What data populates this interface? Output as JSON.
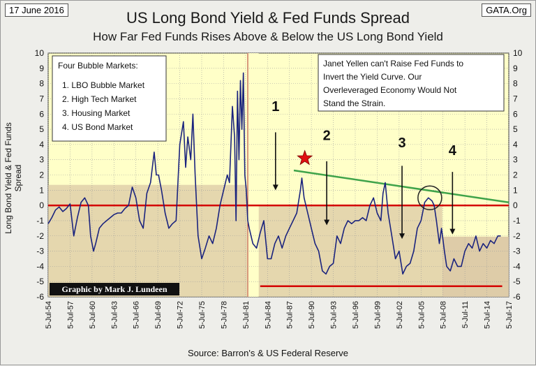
{
  "header": {
    "date": "17 June 2016",
    "source_site": "GATA.Org"
  },
  "chart_data": {
    "type": "line",
    "title": "US Long Bond Yield & Fed Funds Spread",
    "subtitle": "How Far Fed Funds Rises Above & Below the US Long Bond Yield",
    "ylabel": "Long Bond Yield & Fed Funds Spread",
    "xlabel": "Source: Barron's & US Federal Reserve",
    "ylim": [
      -6,
      10
    ],
    "xlim": [
      1954.5,
      2017.5
    ],
    "y_ticks": [
      "10",
      "9",
      "8",
      "7",
      "6",
      "5",
      "4",
      "3",
      "2",
      "1",
      "0",
      "-1",
      "-2",
      "-3",
      "-4",
      "-5",
      "-6"
    ],
    "x_ticks": [
      "5-Jul-54",
      "5-Jul-57",
      "5-Jul-60",
      "5-Jul-63",
      "5-Jul-66",
      "5-Jul-69",
      "5-Jul-72",
      "5-Jul-75",
      "5-Jul-78",
      "5-Jul-81",
      "5-Jul-84",
      "5-Jul-87",
      "5-Jul-90",
      "5-Jul-93",
      "5-Jul-96",
      "5-Jul-99",
      "5-Jul-02",
      "5-Jul-05",
      "5-Jul-08",
      "5-Jul-11",
      "5-Jul-14",
      "5-Jul-17"
    ],
    "grid": true,
    "series": [
      {
        "color": "#1a237e",
        "x": [
          1954.5,
          1955.0,
          1955.5,
          1956.0,
          1956.5,
          1957.0,
          1957.5,
          1958.0,
          1958.5,
          1959.0,
          1959.5,
          1960.0,
          1960.3,
          1960.7,
          1961.0,
          1961.5,
          1962.0,
          1962.5,
          1963.0,
          1963.5,
          1964.0,
          1964.5,
          1965.0,
          1965.5,
          1966.0,
          1966.5,
          1967.0,
          1967.5,
          1968.0,
          1968.5,
          1969.0,
          1969.3,
          1969.6,
          1970.0,
          1970.5,
          1971.0,
          1971.5,
          1972.0,
          1972.5,
          1973.0,
          1973.3,
          1973.6,
          1974.0,
          1974.3,
          1974.6,
          1975.0,
          1975.5,
          1976.0,
          1976.5,
          1977.0,
          1977.5,
          1978.0,
          1978.5,
          1979.0,
          1979.3,
          1979.7,
          1980.0,
          1980.2,
          1980.4,
          1980.6,
          1980.8,
          1981.0,
          1981.2,
          1981.4,
          1981.6,
          1981.8,
          1982.0,
          1982.5,
          1983.0,
          1983.5,
          1984.0,
          1984.5,
          1985.0,
          1985.5,
          1986.0,
          1986.5,
          1987.0,
          1987.5,
          1988.0,
          1988.5,
          1989.0,
          1989.2,
          1989.5,
          1990.0,
          1990.5,
          1991.0,
          1991.5,
          1992.0,
          1992.5,
          1993.0,
          1993.5,
          1994.0,
          1994.5,
          1995.0,
          1995.5,
          1996.0,
          1996.5,
          1997.0,
          1997.5,
          1998.0,
          1998.5,
          1999.0,
          1999.5,
          2000.0,
          2000.3,
          2000.6,
          2001.0,
          2001.5,
          2002.0,
          2002.5,
          2003.0,
          2003.5,
          2004.0,
          2004.5,
          2005.0,
          2005.5,
          2006.0,
          2006.5,
          2007.0,
          2007.3,
          2007.6,
          2008.0,
          2008.3,
          2008.7,
          2009.0,
          2009.5,
          2010.0,
          2010.5,
          2011.0,
          2011.5,
          2012.0,
          2012.5,
          2013.0,
          2013.5,
          2014.0,
          2014.5,
          2015.0,
          2015.5,
          2016.0,
          2016.4
        ],
        "values": [
          -1.2,
          -0.8,
          -0.3,
          -0.1,
          -0.4,
          -0.2,
          0.1,
          -2.0,
          -0.8,
          0.2,
          0.5,
          0.0,
          -2.0,
          -3.0,
          -2.5,
          -1.5,
          -1.2,
          -1.0,
          -0.8,
          -0.6,
          -0.5,
          -0.5,
          -0.2,
          0.0,
          1.2,
          0.5,
          -1.0,
          -1.5,
          0.8,
          1.5,
          3.5,
          2.0,
          2.0,
          1.0,
          -0.5,
          -1.5,
          -1.2,
          -1.0,
          4.0,
          5.5,
          2.5,
          4.5,
          3.0,
          6.0,
          2.0,
          -2.0,
          -3.5,
          -2.8,
          -2.0,
          -2.5,
          -1.5,
          0.0,
          1.0,
          2.0,
          1.5,
          6.5,
          4.5,
          -1.0,
          7.5,
          3.0,
          8.2,
          5.0,
          8.7,
          2.0,
          1.0,
          -1.0,
          -1.5,
          -2.5,
          -2.8,
          -1.8,
          -1.0,
          -3.5,
          -3.5,
          -2.5,
          -2.0,
          -2.8,
          -2.0,
          -1.5,
          -1.0,
          -0.5,
          1.0,
          1.8,
          0.5,
          -0.5,
          -1.5,
          -2.5,
          -3.0,
          -4.3,
          -4.5,
          -4.0,
          -3.8,
          -2.0,
          -2.5,
          -1.5,
          -1.0,
          -1.2,
          -1.0,
          -1.0,
          -0.8,
          -1.0,
          0.0,
          0.5,
          -0.5,
          -1.0,
          0.8,
          1.5,
          -0.5,
          -2.0,
          -3.5,
          -3.0,
          -4.5,
          -4.0,
          -3.8,
          -3.0,
          -1.5,
          -1.0,
          0.2,
          0.5,
          0.3,
          0.0,
          -1.0,
          -2.5,
          -1.5,
          -3.0,
          -4.0,
          -4.3,
          -3.5,
          -4.0,
          -4.0,
          -3.0,
          -2.5,
          -2.8,
          -2.0,
          -3.0,
          -2.5,
          -2.8,
          -2.3,
          -2.5,
          -2.0,
          -2.0
        ]
      }
    ],
    "annotations": {
      "bubble_box_title": "Four Bubble Markets:",
      "bubble_items": [
        "1.  LBO Bubble Market",
        "2.  High Tech Market",
        "3.  Housing Market",
        "4.  US Bond Market"
      ],
      "yellen_lines": [
        "Janet Yellen can't Raise Fed Funds to",
        "Invert the Yield Curve.  Our",
        "Overleveraged Economy Would Not",
        "Stand the Strain."
      ],
      "numbers": [
        "1",
        "2",
        "3",
        "4"
      ],
      "credit": "Graphic by Mark J. Lundeen"
    },
    "colors": {
      "plot_bg": "#ffffc8",
      "shade": "#dcc9a6",
      "series": "#1a237e",
      "zero_line": "#d40000",
      "trend": "#3fa34a",
      "star": "#e01010"
    }
  }
}
